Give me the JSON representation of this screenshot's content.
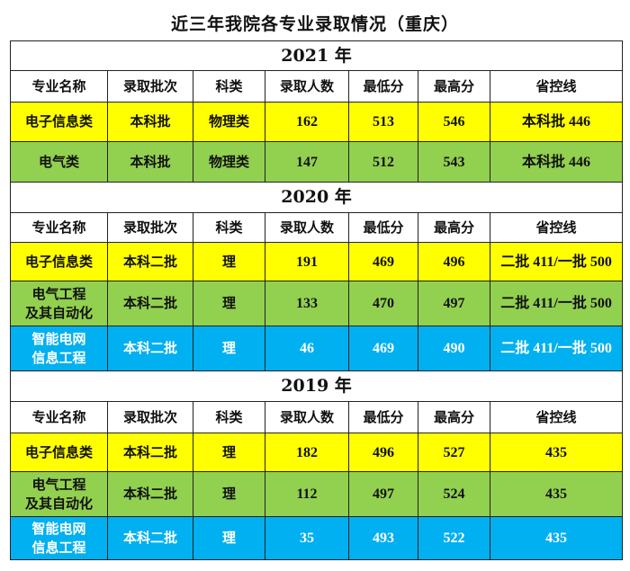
{
  "title": "近三年我院各专业录取情况（重庆）",
  "colors": {
    "yellow": "#FFFF00",
    "green": "#92D050",
    "blue": "#00B0F0",
    "blue_text": "#FFFFFF"
  },
  "headers": [
    "专业名称",
    "录取批次",
    "科类",
    "录取人数",
    "最低分",
    "最高分",
    "省控线"
  ],
  "sections": [
    {
      "year": "2021 年",
      "rows": [
        {
          "color": "yellow",
          "cells": [
            "电子信息类",
            "本科批",
            "物理类",
            "162",
            "513",
            "546",
            "本科批 446"
          ]
        },
        {
          "color": "green",
          "cells": [
            "电气类",
            "本科批",
            "物理类",
            "147",
            "512",
            "543",
            "本科批 446"
          ]
        }
      ]
    },
    {
      "year": "2020 年",
      "rows": [
        {
          "color": "yellow",
          "cells": [
            "电子信息类",
            "本科二批",
            "理",
            "191",
            "469",
            "496",
            "二批 411/一批 500"
          ]
        },
        {
          "color": "green",
          "cells": [
            "电气工程\n及其自动化",
            "本科二批",
            "理",
            "133",
            "470",
            "497",
            "二批 411/一批 500"
          ]
        },
        {
          "color": "blue",
          "cells": [
            "智能电网\n信息工程",
            "本科二批",
            "理",
            "46",
            "469",
            "490",
            "二批 411/一批 500"
          ]
        }
      ]
    },
    {
      "year": "2019 年",
      "rows": [
        {
          "color": "yellow",
          "cells": [
            "电子信息类",
            "本科二批",
            "理",
            "182",
            "496",
            "527",
            "435"
          ]
        },
        {
          "color": "green",
          "cells": [
            "电气工程\n及其自动化",
            "本科二批",
            "理",
            "112",
            "497",
            "524",
            "435"
          ]
        },
        {
          "color": "blue",
          "cells": [
            "智能电网\n信息工程",
            "本科二批",
            "理",
            "35",
            "493",
            "522",
            "435"
          ]
        }
      ]
    }
  ]
}
